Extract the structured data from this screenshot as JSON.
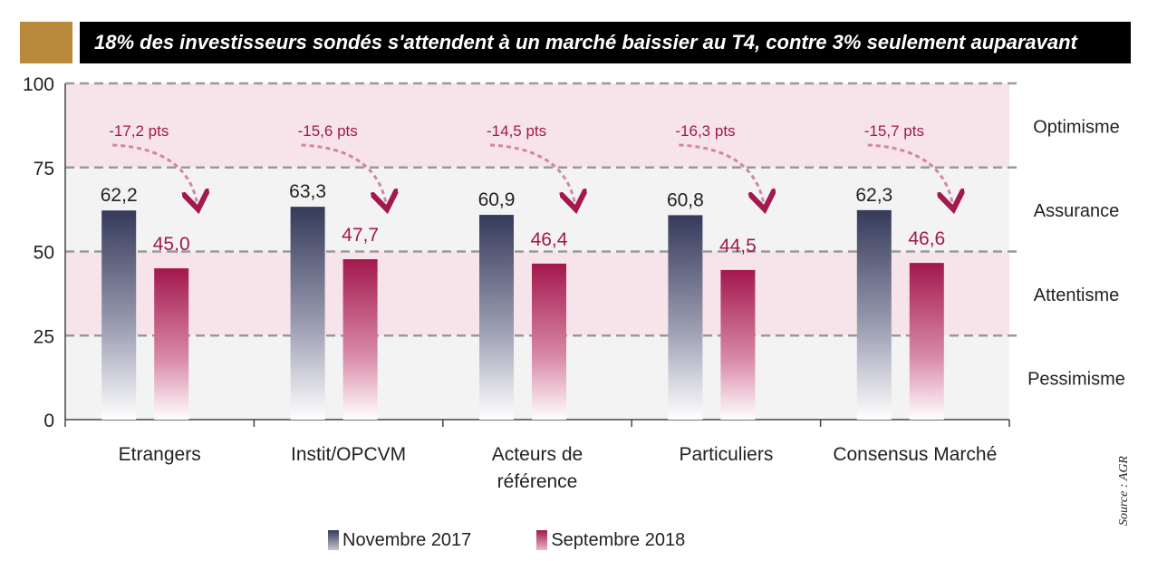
{
  "title": "18% des investisseurs sondés s'attendent à un marché baissier au T4, contre 3% seulement auparavant",
  "source": "Source : AGR",
  "colors": {
    "accent": "#b8893a",
    "series1": "#353a5a",
    "series2": "#a3184d",
    "band_pink": "#f6e4ea",
    "band_grey": "#f3f3f4"
  },
  "chart_data": {
    "type": "bar",
    "categories": [
      "Etrangers",
      "Instit/OPCVM",
      "Acteurs de référence",
      "Particuliers",
      "Consensus Marché"
    ],
    "category_lines": [
      [
        "Etrangers"
      ],
      [
        "Instit/OPCVM"
      ],
      [
        "Acteurs de",
        "référence"
      ],
      [
        "Particuliers"
      ],
      [
        "Consensus Marché"
      ]
    ],
    "series": [
      {
        "name": "Novembre 2017",
        "values": [
          62.2,
          63.3,
          60.9,
          60.8,
          62.3
        ],
        "labels": [
          "62,2",
          "63,3",
          "60,9",
          "60,8",
          "62,3"
        ]
      },
      {
        "name": "Septembre 2018",
        "values": [
          45.0,
          47.7,
          46.4,
          44.5,
          46.6
        ],
        "labels": [
          "45,0",
          "47,7",
          "46,4",
          "44,5",
          "46,6"
        ]
      }
    ],
    "annotations": [
      "-17,2 pts",
      "-15,6 pts",
      "-14,5 pts",
      "-16,3 pts",
      "-15,7 pts"
    ],
    "ylim": [
      0,
      100
    ],
    "yticks": [
      0,
      25,
      50,
      75,
      100
    ],
    "zones": [
      {
        "label": "Optimisme",
        "from": 75,
        "to": 100
      },
      {
        "label": "Assurance",
        "from": 50,
        "to": 75
      },
      {
        "label": "Attentisme",
        "from": 25,
        "to": 50
      },
      {
        "label": "Pessimisme",
        "from": 0,
        "to": 25
      }
    ],
    "grid": true,
    "legend_position": "bottom-center"
  }
}
